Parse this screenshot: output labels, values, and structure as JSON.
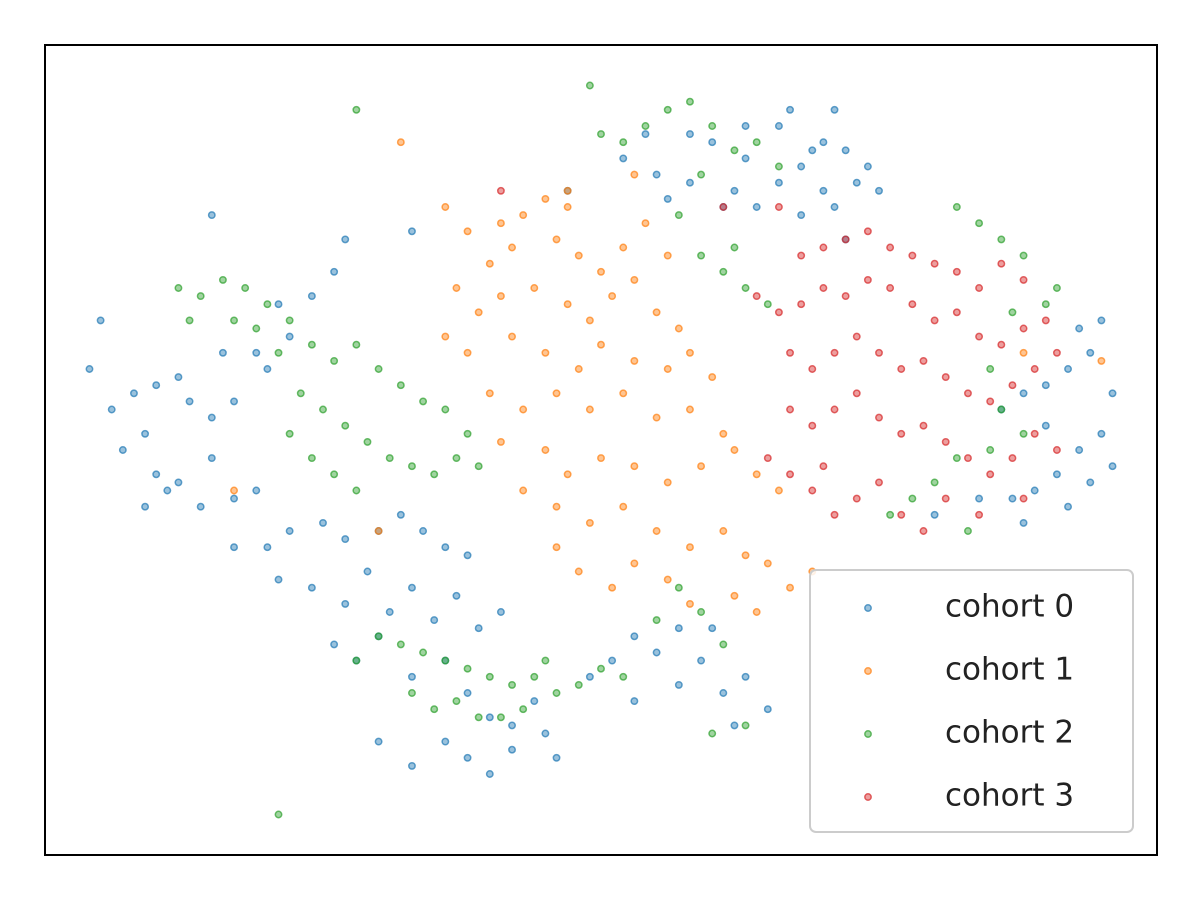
{
  "chart_data": {
    "type": "scatter",
    "xlim": [
      0,
      100
    ],
    "ylim": [
      0,
      100
    ],
    "legend": "lower right",
    "series": [
      {
        "name": "cohort 0",
        "color": "#1f77b4",
        "x": [
          52,
          55,
          58,
          60,
          63,
          66,
          68,
          70,
          72,
          74,
          70,
          66,
          62,
          64,
          68,
          71,
          73,
          75,
          58,
          61,
          63,
          56,
          67,
          71,
          54,
          4,
          6,
          8,
          10,
          12,
          9,
          7,
          13,
          15,
          17,
          15,
          12,
          10,
          14,
          17,
          19,
          20,
          22,
          24,
          26,
          21,
          19,
          16,
          11,
          9,
          5,
          17,
          20,
          22,
          25,
          27,
          30,
          32,
          34,
          36,
          38,
          21,
          24,
          27,
          29,
          31,
          33,
          35,
          37,
          39,
          41,
          26,
          28,
          30,
          33,
          36,
          38,
          40,
          42,
          44,
          36,
          38,
          40,
          42,
          30,
          33,
          46,
          45,
          49,
          51,
          53,
          55,
          57,
          59,
          61,
          63,
          65,
          62,
          60,
          57,
          53,
          86,
          88,
          90,
          92,
          94,
          96,
          95,
          93,
          91,
          89,
          87,
          92,
          94,
          96,
          84,
          90,
          93,
          95,
          88,
          15,
          47,
          33,
          27,
          69,
          72,
          80
        ],
        "y": [
          86,
          84,
          83,
          88,
          86,
          90,
          85,
          88,
          87,
          85,
          82,
          83,
          82,
          80,
          79,
          80,
          83,
          82,
          89,
          80,
          90,
          81,
          92,
          92,
          89,
          60,
          55,
          57,
          58,
          59,
          52,
          50,
          56,
          54,
          56,
          49,
          46,
          47,
          43,
          44,
          45,
          60,
          64,
          69,
          72,
          68,
          62,
          62,
          45,
          43,
          66,
          38,
          38,
          40,
          41,
          39,
          40,
          42,
          40,
          38,
          37,
          34,
          33,
          31,
          35,
          30,
          33,
          29,
          32,
          28,
          30,
          26,
          24,
          27,
          22,
          24,
          20,
          17,
          16,
          19,
          14,
          12,
          10,
          13,
          14,
          11,
          12,
          15,
          22,
          24,
          27,
          25,
          21,
          24,
          20,
          22,
          18,
          16,
          28,
          28,
          19,
          55,
          57,
          58,
          60,
          62,
          57,
          52,
          50,
          47,
          45,
          44,
          43,
          46,
          48,
          44,
          53,
          65,
          66,
          41,
          79,
          82,
          77,
          76,
          87,
          76,
          42
        ]
      },
      {
        "name": "cohort 1",
        "color": "#ff7f0e",
        "x": [
          36,
          38,
          41,
          43,
          45,
          47,
          40,
          42,
          46,
          48,
          50,
          52,
          54,
          56,
          37,
          39,
          41,
          44,
          47,
          49,
          51,
          53,
          55,
          57,
          36,
          38,
          42,
          45,
          48,
          50,
          53,
          56,
          58,
          60,
          40,
          43,
          46,
          49,
          52,
          55,
          58,
          61,
          45,
          47,
          50,
          53,
          56,
          59,
          62,
          64,
          66,
          41,
          43,
          46,
          49,
          52,
          55,
          58,
          61,
          63,
          65,
          67,
          69,
          46,
          48,
          51,
          53,
          56,
          58,
          62,
          64,
          30,
          53,
          17,
          32,
          47,
          88,
          95
        ],
        "y": [
          80,
          77,
          78,
          79,
          81,
          80,
          73,
          75,
          76,
          74,
          72,
          75,
          78,
          74,
          70,
          67,
          69,
          70,
          68,
          66,
          69,
          71,
          67,
          65,
          64,
          62,
          64,
          62,
          60,
          63,
          61,
          60,
          62,
          59,
          57,
          55,
          57,
          55,
          57,
          54,
          55,
          52,
          50,
          47,
          49,
          48,
          46,
          48,
          50,
          47,
          45,
          51,
          45,
          43,
          41,
          43,
          40,
          38,
          40,
          37,
          36,
          33,
          35,
          38,
          35,
          33,
          36,
          34,
          31,
          32,
          30,
          40,
          84,
          45,
          88,
          82,
          62,
          61
        ]
      },
      {
        "name": "cohort 2",
        "color": "#2ca02c",
        "x": [
          12,
          14,
          16,
          18,
          20,
          22,
          13,
          17,
          19,
          21,
          24,
          26,
          28,
          30,
          32,
          34,
          36,
          38,
          23,
          25,
          27,
          29,
          31,
          33,
          35,
          22,
          24,
          26,
          28,
          37,
          39,
          30,
          32,
          34,
          36,
          38,
          40,
          42,
          44,
          46,
          48,
          50,
          33,
          35,
          37,
          39,
          41,
          43,
          28,
          45,
          52,
          55,
          57,
          59,
          61,
          63,
          60,
          28,
          49,
          50,
          52,
          54,
          56,
          58,
          60,
          62,
          64,
          66,
          59,
          57,
          59,
          61,
          63,
          65,
          62,
          82,
          84,
          86,
          88,
          90,
          91,
          87,
          86,
          88,
          85,
          82,
          80,
          78,
          76,
          85,
          83,
          21
        ],
        "y": [
          70,
          69,
          71,
          70,
          68,
          66,
          66,
          66,
          65,
          62,
          63,
          61,
          63,
          60,
          58,
          56,
          55,
          52,
          57,
          55,
          53,
          51,
          49,
          48,
          47,
          52,
          49,
          47,
          45,
          49,
          48,
          27,
          26,
          25,
          24,
          23,
          22,
          21,
          22,
          20,
          21,
          23,
          20,
          18,
          19,
          17,
          17,
          18,
          24,
          24,
          22,
          29,
          33,
          30,
          26,
          16,
          15,
          92,
          95,
          89,
          88,
          90,
          92,
          93,
          90,
          87,
          88,
          85,
          84,
          79,
          74,
          72,
          70,
          68,
          75,
          80,
          78,
          76,
          74,
          68,
          70,
          67,
          55,
          52,
          50,
          49,
          46,
          44,
          42,
          60,
          40,
          5
        ]
      },
      {
        "name": "cohort 3",
        "color": "#d62728",
        "x": [
          66,
          68,
          70,
          72,
          74,
          76,
          78,
          80,
          82,
          84,
          86,
          88,
          64,
          66,
          68,
          70,
          72,
          74,
          76,
          78,
          80,
          82,
          84,
          86,
          88,
          90,
          67,
          69,
          71,
          73,
          75,
          77,
          79,
          81,
          83,
          85,
          87,
          89,
          91,
          67,
          69,
          71,
          73,
          75,
          77,
          79,
          81,
          83,
          85,
          87,
          89,
          91,
          65,
          67,
          69,
          71,
          73,
          75,
          77,
          79,
          81,
          84,
          88,
          61,
          41,
          70
        ],
        "y": [
          80,
          74,
          75,
          76,
          77,
          75,
          74,
          73,
          72,
          70,
          73,
          71,
          69,
          67,
          68,
          70,
          69,
          71,
          70,
          68,
          66,
          67,
          64,
          63,
          65,
          66,
          62,
          60,
          62,
          64,
          62,
          60,
          61,
          59,
          57,
          56,
          58,
          60,
          62,
          55,
          53,
          55,
          57,
          54,
          52,
          53,
          51,
          49,
          47,
          49,
          52,
          50,
          49,
          47,
          45,
          42,
          44,
          46,
          42,
          40,
          44,
          42,
          44,
          80,
          82,
          48
        ]
      }
    ]
  }
}
